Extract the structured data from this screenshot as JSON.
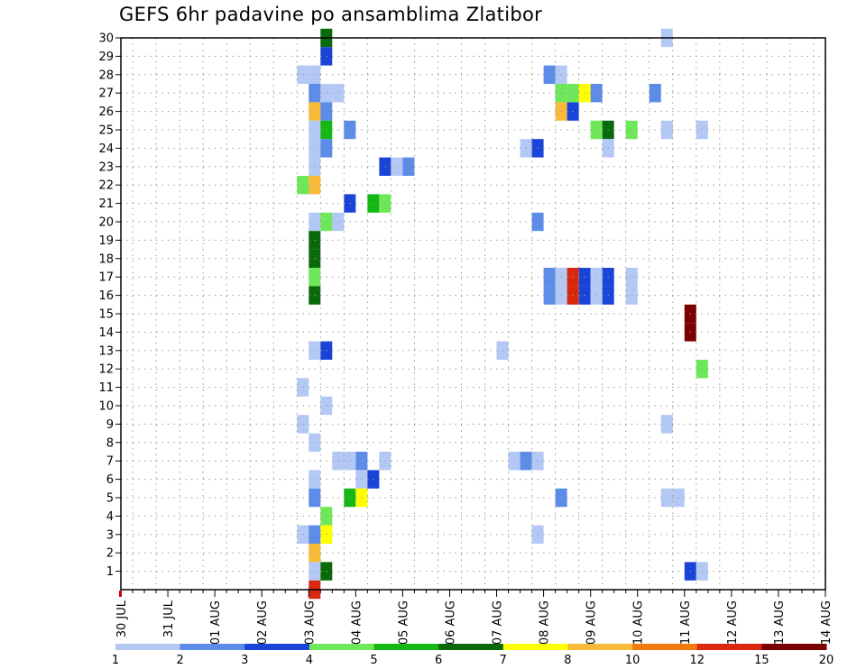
{
  "page": {
    "title": "GEFS 6hr padavine po ansamblima Zlatibor"
  },
  "chart_data": {
    "type": "heatmap",
    "title": "GEFS 6hr padavine po ansamblima Zlatibor",
    "xlabel": "",
    "ylabel": "",
    "x_ticks": [
      "30 JUL",
      "31 JUL",
      "01 AUG",
      "02 AUG",
      "03 AUG",
      "04 AUG",
      "05 AUG",
      "06 AUG",
      "07 AUG",
      "08 AUG",
      "09 AUG",
      "10 AUG",
      "11 AUG",
      "12 AUG",
      "13 AUG",
      "14 AUG"
    ],
    "x_step_per_day": 4,
    "y_ticks": [
      1,
      2,
      3,
      4,
      5,
      6,
      7,
      8,
      9,
      10,
      11,
      12,
      13,
      14,
      15,
      16,
      17,
      18,
      19,
      20,
      21,
      22,
      23,
      24,
      25,
      26,
      27,
      28,
      29,
      30
    ],
    "ylim": [
      0,
      30
    ],
    "grid": true,
    "colorbar": {
      "levels": [
        "1",
        "2",
        "3",
        "4",
        "5",
        "6",
        "7",
        "8",
        "10",
        "12",
        "15",
        "20"
      ],
      "colors": [
        "#b3c8f5",
        "#5c8ce8",
        "#1a44d8",
        "#6ee85a",
        "#14b814",
        "#0a6a0a",
        "#ffff00",
        "#f8ba38",
        "#f47a10",
        "#d82810",
        "#7a0000"
      ]
    },
    "cells": [
      {
        "member": 30,
        "t": 17,
        "c": 5
      },
      {
        "member": 29,
        "t": 17,
        "c": 2
      },
      {
        "member": 28,
        "t": 15,
        "c": 0
      },
      {
        "member": 28,
        "t": 16,
        "c": 0
      },
      {
        "member": 27,
        "t": 16,
        "c": 1
      },
      {
        "member": 27,
        "t": 17,
        "c": 0
      },
      {
        "member": 27,
        "t": 18,
        "c": 0
      },
      {
        "member": 26,
        "t": 16,
        "c": 7
      },
      {
        "member": 26,
        "t": 17,
        "c": 1
      },
      {
        "member": 25,
        "t": 16,
        "c": 0
      },
      {
        "member": 25,
        "t": 17,
        "c": 4
      },
      {
        "member": 25,
        "t": 19,
        "c": 1
      },
      {
        "member": 24,
        "t": 16,
        "c": 0
      },
      {
        "member": 24,
        "t": 17,
        "c": 1
      },
      {
        "member": 23,
        "t": 16,
        "c": 0
      },
      {
        "member": 23,
        "t": 22,
        "c": 2
      },
      {
        "member": 23,
        "t": 23,
        "c": 0
      },
      {
        "member": 23,
        "t": 24,
        "c": 1
      },
      {
        "member": 22,
        "t": 15,
        "c": 3
      },
      {
        "member": 22,
        "t": 16,
        "c": 7
      },
      {
        "member": 21,
        "t": 19,
        "c": 2
      },
      {
        "member": 21,
        "t": 21,
        "c": 4
      },
      {
        "member": 21,
        "t": 22,
        "c": 3
      },
      {
        "member": 20,
        "t": 16,
        "c": 0
      },
      {
        "member": 20,
        "t": 17,
        "c": 3
      },
      {
        "member": 20,
        "t": 18,
        "c": 0
      },
      {
        "member": 19,
        "t": 16,
        "c": 5
      },
      {
        "member": 18,
        "t": 16,
        "c": 5
      },
      {
        "member": 17,
        "t": 16,
        "c": 3
      },
      {
        "member": 16,
        "t": 16,
        "c": 5
      },
      {
        "member": 13,
        "t": 16,
        "c": 0
      },
      {
        "member": 13,
        "t": 17,
        "c": 2
      },
      {
        "member": 11,
        "t": 15,
        "c": 0
      },
      {
        "member": 10,
        "t": 17,
        "c": 0
      },
      {
        "member": 9,
        "t": 15,
        "c": 0
      },
      {
        "member": 8,
        "t": 16,
        "c": 0
      },
      {
        "member": 7,
        "t": 18,
        "c": 0
      },
      {
        "member": 7,
        "t": 19,
        "c": 0
      },
      {
        "member": 7,
        "t": 20,
        "c": 1
      },
      {
        "member": 7,
        "t": 22,
        "c": 0
      },
      {
        "member": 6,
        "t": 16,
        "c": 0
      },
      {
        "member": 6,
        "t": 20,
        "c": 0
      },
      {
        "member": 6,
        "t": 21,
        "c": 2
      },
      {
        "member": 5,
        "t": 16,
        "c": 1
      },
      {
        "member": 5,
        "t": 19,
        "c": 4
      },
      {
        "member": 5,
        "t": 20,
        "c": 6
      },
      {
        "member": 4,
        "t": 17,
        "c": 3
      },
      {
        "member": 3,
        "t": 15,
        "c": 0
      },
      {
        "member": 3,
        "t": 16,
        "c": 1
      },
      {
        "member": 3,
        "t": 17,
        "c": 6
      },
      {
        "member": 2,
        "t": 16,
        "c": 7
      },
      {
        "member": 1,
        "t": 16,
        "c": 0
      },
      {
        "member": 1,
        "t": 17,
        "c": 5
      },
      {
        "member": 0,
        "t": 16,
        "c": 9
      },
      {
        "member": 28,
        "t": 36,
        "c": 1
      },
      {
        "member": 28,
        "t": 37,
        "c": 0
      },
      {
        "member": 27,
        "t": 37,
        "c": 3
      },
      {
        "member": 27,
        "t": 38,
        "c": 3
      },
      {
        "member": 27,
        "t": 39,
        "c": 6
      },
      {
        "member": 27,
        "t": 40,
        "c": 1
      },
      {
        "member": 26,
        "t": 37,
        "c": 7
      },
      {
        "member": 26,
        "t": 38,
        "c": 2
      },
      {
        "member": 25,
        "t": 40,
        "c": 3
      },
      {
        "member": 25,
        "t": 41,
        "c": 5
      },
      {
        "member": 25,
        "t": 43,
        "c": 3
      },
      {
        "member": 24,
        "t": 34,
        "c": 0
      },
      {
        "member": 24,
        "t": 35,
        "c": 2
      },
      {
        "member": 24,
        "t": 41,
        "c": 0
      },
      {
        "member": 20,
        "t": 35,
        "c": 1
      },
      {
        "member": 17,
        "t": 36,
        "c": 1
      },
      {
        "member": 17,
        "t": 37,
        "c": 0
      },
      {
        "member": 17,
        "t": 38,
        "c": 9
      },
      {
        "member": 17,
        "t": 39,
        "c": 2
      },
      {
        "member": 17,
        "t": 40,
        "c": 0
      },
      {
        "member": 17,
        "t": 41,
        "c": 2
      },
      {
        "member": 17,
        "t": 43,
        "c": 0
      },
      {
        "member": 16,
        "t": 36,
        "c": 1
      },
      {
        "member": 16,
        "t": 37,
        "c": 0
      },
      {
        "member": 16,
        "t": 38,
        "c": 9
      },
      {
        "member": 16,
        "t": 39,
        "c": 2
      },
      {
        "member": 16,
        "t": 40,
        "c": 0
      },
      {
        "member": 16,
        "t": 41,
        "c": 2
      },
      {
        "member": 16,
        "t": 43,
        "c": 0
      },
      {
        "member": 13,
        "t": 32,
        "c": 0
      },
      {
        "member": 7,
        "t": 33,
        "c": 0
      },
      {
        "member": 7,
        "t": 34,
        "c": 1
      },
      {
        "member": 7,
        "t": 35,
        "c": 0
      },
      {
        "member": 5,
        "t": 37,
        "c": 1
      },
      {
        "member": 3,
        "t": 35,
        "c": 0
      },
      {
        "member": 30,
        "t": 46,
        "c": 0
      },
      {
        "member": 27,
        "t": 45,
        "c": 1
      },
      {
        "member": 25,
        "t": 46,
        "c": 0
      },
      {
        "member": 25,
        "t": 49,
        "c": 0
      },
      {
        "member": 9,
        "t": 46,
        "c": 0
      },
      {
        "member": 5,
        "t": 46,
        "c": 0
      },
      {
        "member": 5,
        "t": 47,
        "c": 0
      },
      {
        "member": 15,
        "t": 48,
        "c": 10
      },
      {
        "member": 14,
        "t": 48,
        "c": 10
      },
      {
        "member": 12,
        "t": 49,
        "c": 3
      },
      {
        "member": 1,
        "t": 48,
        "c": 2
      },
      {
        "member": 1,
        "t": 49,
        "c": 0
      }
    ]
  }
}
